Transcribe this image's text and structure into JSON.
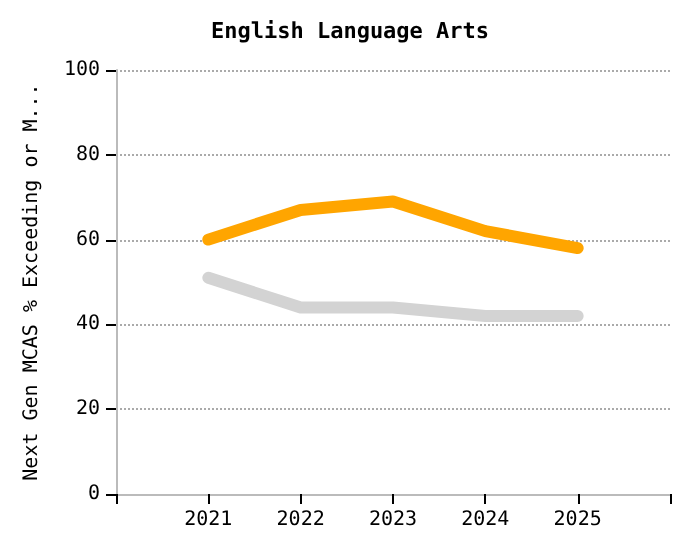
{
  "chart_data": {
    "type": "line",
    "title": "English Language Arts",
    "ylabel": "Next Gen MCAS % Exceeding or M...",
    "x": [
      2021,
      2022,
      2023,
      2024,
      2025
    ],
    "series": [
      {
        "color": "#ffa500",
        "values": [
          60,
          67,
          69,
          62,
          58
        ]
      },
      {
        "color": "#d3d3d3",
        "values": [
          51,
          44,
          44,
          42,
          42
        ]
      }
    ],
    "xlim": [
      2020,
      2026
    ],
    "xticks": [
      {
        "value": 2020,
        "label": null
      },
      2021,
      2022,
      2023,
      2024,
      2025,
      {
        "value": 2026,
        "label": null
      }
    ],
    "ylim": [
      0,
      100
    ],
    "yticks": [
      0,
      20,
      40,
      60,
      80,
      100
    ],
    "grid": "y",
    "marker": "none",
    "line_style": "solid"
  }
}
